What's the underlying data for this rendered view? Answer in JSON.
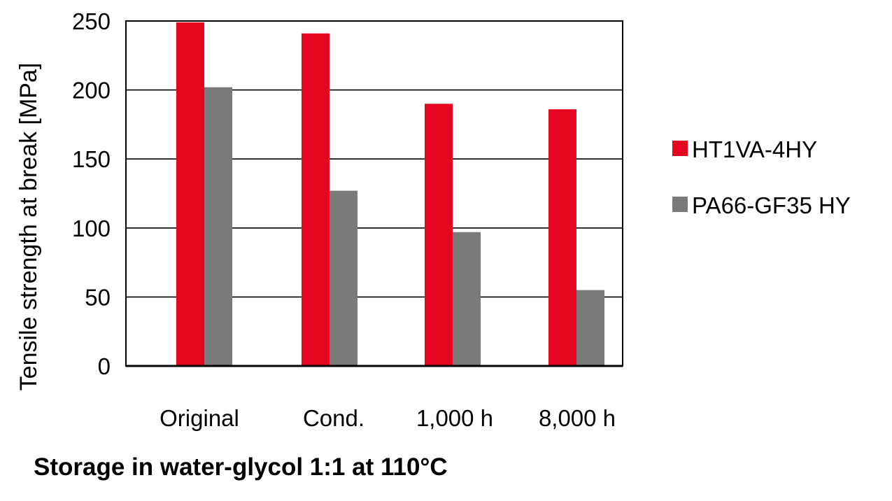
{
  "chart_data": {
    "type": "bar",
    "title": "",
    "xlabel": "Storage in water-glycol 1:1 at 110°C",
    "ylabel": "Tensile strength at break [MPa]",
    "categories": [
      "Original",
      "Cond.",
      "1,000 h",
      "8,000 h"
    ],
    "ylim": [
      0,
      250
    ],
    "yticks": [
      "0",
      "50",
      "100",
      "150",
      "200",
      "250"
    ],
    "grid": true,
    "legend_position": "right",
    "series": [
      {
        "name": "HT1VA-4HY",
        "color": "#e3061e",
        "values": [
          249,
          241,
          190,
          186
        ]
      },
      {
        "name": "PA66-GF35 HY",
        "color": "#7a7a7a",
        "values": [
          202,
          127,
          97,
          55
        ]
      }
    ]
  }
}
